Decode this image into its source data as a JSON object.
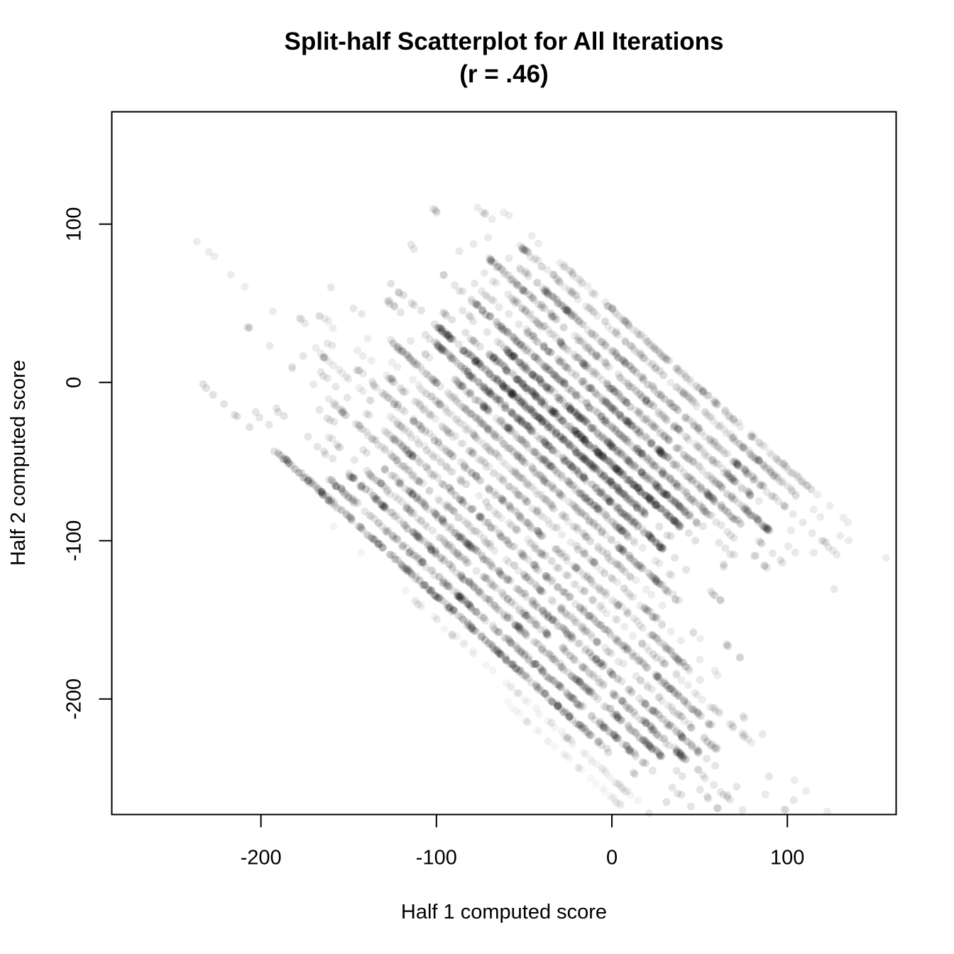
{
  "chart_data": {
    "type": "scatter",
    "title": "Split-half Scatterplot for All Iterations",
    "subtitle": "(r = .46)",
    "xlabel": "Half 1 computed score",
    "ylabel": "Half 2 computed score",
    "xlim": [
      -285,
      162
    ],
    "ylim": [
      -273,
      171
    ],
    "xticks": [
      -200,
      -100,
      0,
      100
    ],
    "xtick_labels": [
      "-200",
      "-100",
      "0",
      "100"
    ],
    "yticks": [
      -200,
      -100,
      0,
      100
    ],
    "ytick_labels": [
      "-200",
      "-100",
      "0",
      "100"
    ],
    "grid": false,
    "point_color": "#000000",
    "point_opacity": 0.03,
    "bands": [
      {
        "sum": -235,
        "x_from": -190,
        "x_to": -5,
        "strength": 1.0
      },
      {
        "sum": -222,
        "x_from": -160,
        "x_to": 20,
        "strength": 0.9
      },
      {
        "sum": -208,
        "x_from": -150,
        "x_to": 30,
        "strength": 0.95
      },
      {
        "sum": -196,
        "x_from": -140,
        "x_to": 45,
        "strength": 0.8
      },
      {
        "sum": -184,
        "x_from": -130,
        "x_to": 50,
        "strength": 0.9
      },
      {
        "sum": -172,
        "x_from": -160,
        "x_to": 60,
        "strength": 0.7
      },
      {
        "sum": -160,
        "x_from": -130,
        "x_to": 60,
        "strength": 0.85
      },
      {
        "sum": -148,
        "x_from": -175,
        "x_to": 85,
        "strength": 0.6
      },
      {
        "sum": -137,
        "x_from": -145,
        "x_to": 45,
        "strength": 0.75
      },
      {
        "sum": -124,
        "x_from": -130,
        "x_to": 30,
        "strength": 0.6
      },
      {
        "sum": -112,
        "x_from": -110,
        "x_to": 20,
        "strength": 0.55
      },
      {
        "sum": -100,
        "x_from": -125,
        "x_to": 40,
        "strength": 0.8
      },
      {
        "sum": -88,
        "x_from": -90,
        "x_to": 10,
        "strength": 0.7
      },
      {
        "sum": -76,
        "x_from": -100,
        "x_to": 30,
        "strength": 0.95
      },
      {
        "sum": -64,
        "x_from": -100,
        "x_to": 20,
        "strength": 1.0
      },
      {
        "sum": -52,
        "x_from": -70,
        "x_to": 40,
        "strength": 1.0
      },
      {
        "sum": -40,
        "x_from": -60,
        "x_to": 45,
        "strength": 0.9
      },
      {
        "sum": -28,
        "x_from": -80,
        "x_to": 60,
        "strength": 0.85
      },
      {
        "sum": -16,
        "x_from": -50,
        "x_to": 70,
        "strength": 0.8
      },
      {
        "sum": -4,
        "x_from": -60,
        "x_to": 90,
        "strength": 0.75
      },
      {
        "sum": 8,
        "x_from": -70,
        "x_to": 80,
        "strength": 0.7
      },
      {
        "sum": 20,
        "x_from": -40,
        "x_to": 100,
        "strength": 0.75
      },
      {
        "sum": 34,
        "x_from": -55,
        "x_to": 105,
        "strength": 0.65
      },
      {
        "sum": 46,
        "x_from": -30,
        "x_to": 120,
        "strength": 0.6
      },
      {
        "sum": -250,
        "x_from": -120,
        "x_to": 40,
        "strength": 0.3
      },
      {
        "sum": -262,
        "x_from": -60,
        "x_to": 20,
        "strength": 0.15
      }
    ]
  }
}
